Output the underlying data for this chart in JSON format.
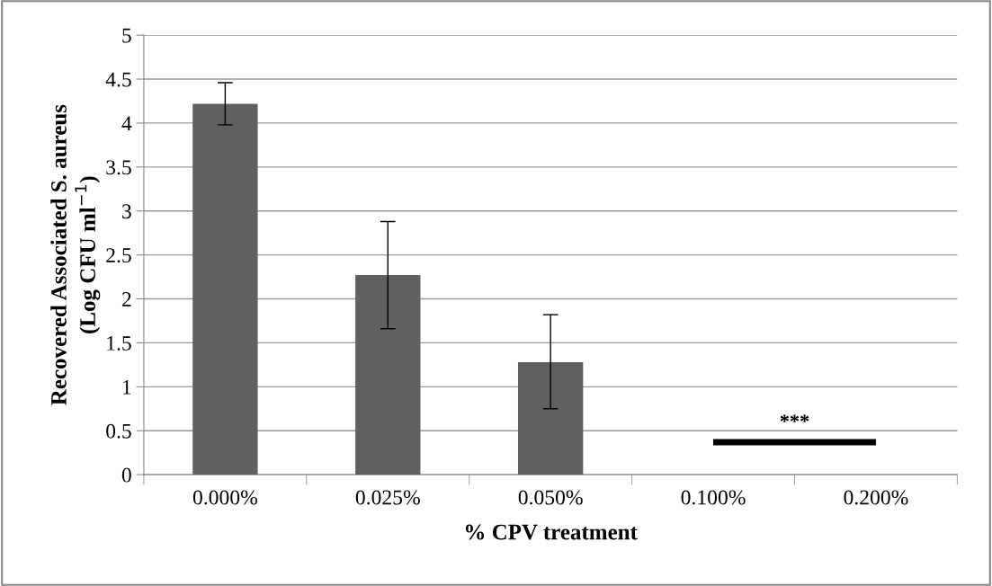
{
  "chart_data": {
    "type": "bar",
    "xlabel": "% CPV treatment",
    "ylabel": "Recovered Associated S. aureus\n(Log CFU ml$^{−1}$)",
    "categories": [
      "0.000%",
      "0.025%",
      "0.050%",
      "0.100%",
      "0.200%"
    ],
    "series": [
      {
        "color": "#606060",
        "values": [
          4.22,
          2.27,
          1.28,
          null,
          null
        ],
        "errors": [
          [
            3.98,
            4.46
          ],
          [
            1.66,
            2.88
          ],
          [
            0.75,
            1.82
          ],
          null,
          null
        ]
      },
      {
        "type": "line",
        "color": "#000000",
        "values": [
          null,
          null,
          null,
          0.37,
          0.37
        ]
      }
    ],
    "annotations": [
      "***"
    ],
    "ylim": [
      0,
      5
    ],
    "yticks": [
      0,
      0.5,
      1,
      1.5,
      2,
      2.5,
      3,
      3.5,
      4,
      4.5,
      5
    ],
    "grid": "y",
    "legend": false
  }
}
